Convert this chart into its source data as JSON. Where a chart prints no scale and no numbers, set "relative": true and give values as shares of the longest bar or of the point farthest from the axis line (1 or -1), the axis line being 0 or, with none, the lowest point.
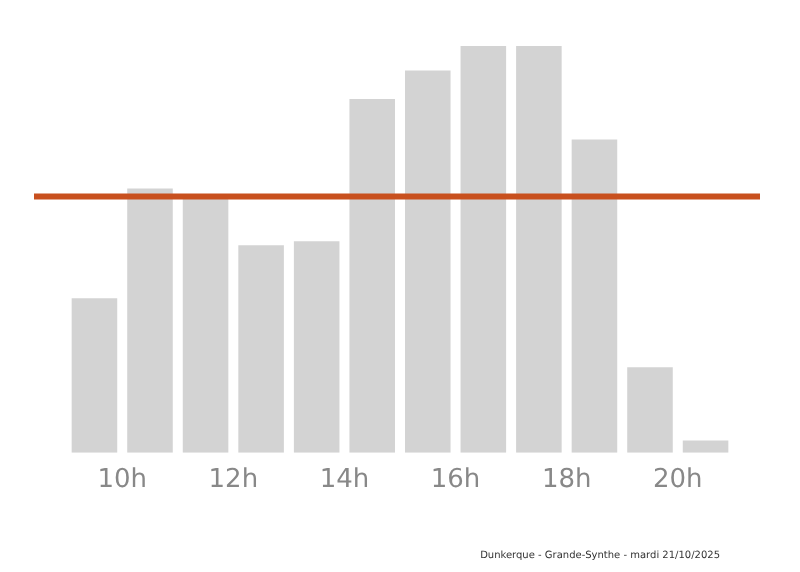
{
  "chart_data": {
    "type": "bar",
    "relative": true,
    "x": [
      9.5,
      10.5,
      11.5,
      12.5,
      13.5,
      14.5,
      15.5,
      16.5,
      17.5,
      18.5,
      19.5,
      20.5
    ],
    "values": [
      0.38,
      0.65,
      0.63,
      0.51,
      0.52,
      0.87,
      0.94,
      1,
      1,
      0.77,
      0.21,
      0.03
    ],
    "color": "#d3d3d3",
    "xlim": [
      9,
      21
    ],
    "xticks": [
      {
        "value": 10,
        "label": "10h"
      },
      {
        "value": 12,
        "label": "12h"
      },
      {
        "value": 14,
        "label": "14h"
      },
      {
        "value": 16,
        "label": "16h"
      },
      {
        "value": 18,
        "label": "18h"
      },
      {
        "value": 20,
        "label": "20h"
      }
    ],
    "ref_lines": [
      {
        "axis": "y",
        "value": 0.63,
        "color": "#c8501e"
      }
    ],
    "annotations": [
      "Dunkerque - Grande-Synthe - mardi 21/10/2025"
    ],
    "grid": false,
    "legend": false
  }
}
